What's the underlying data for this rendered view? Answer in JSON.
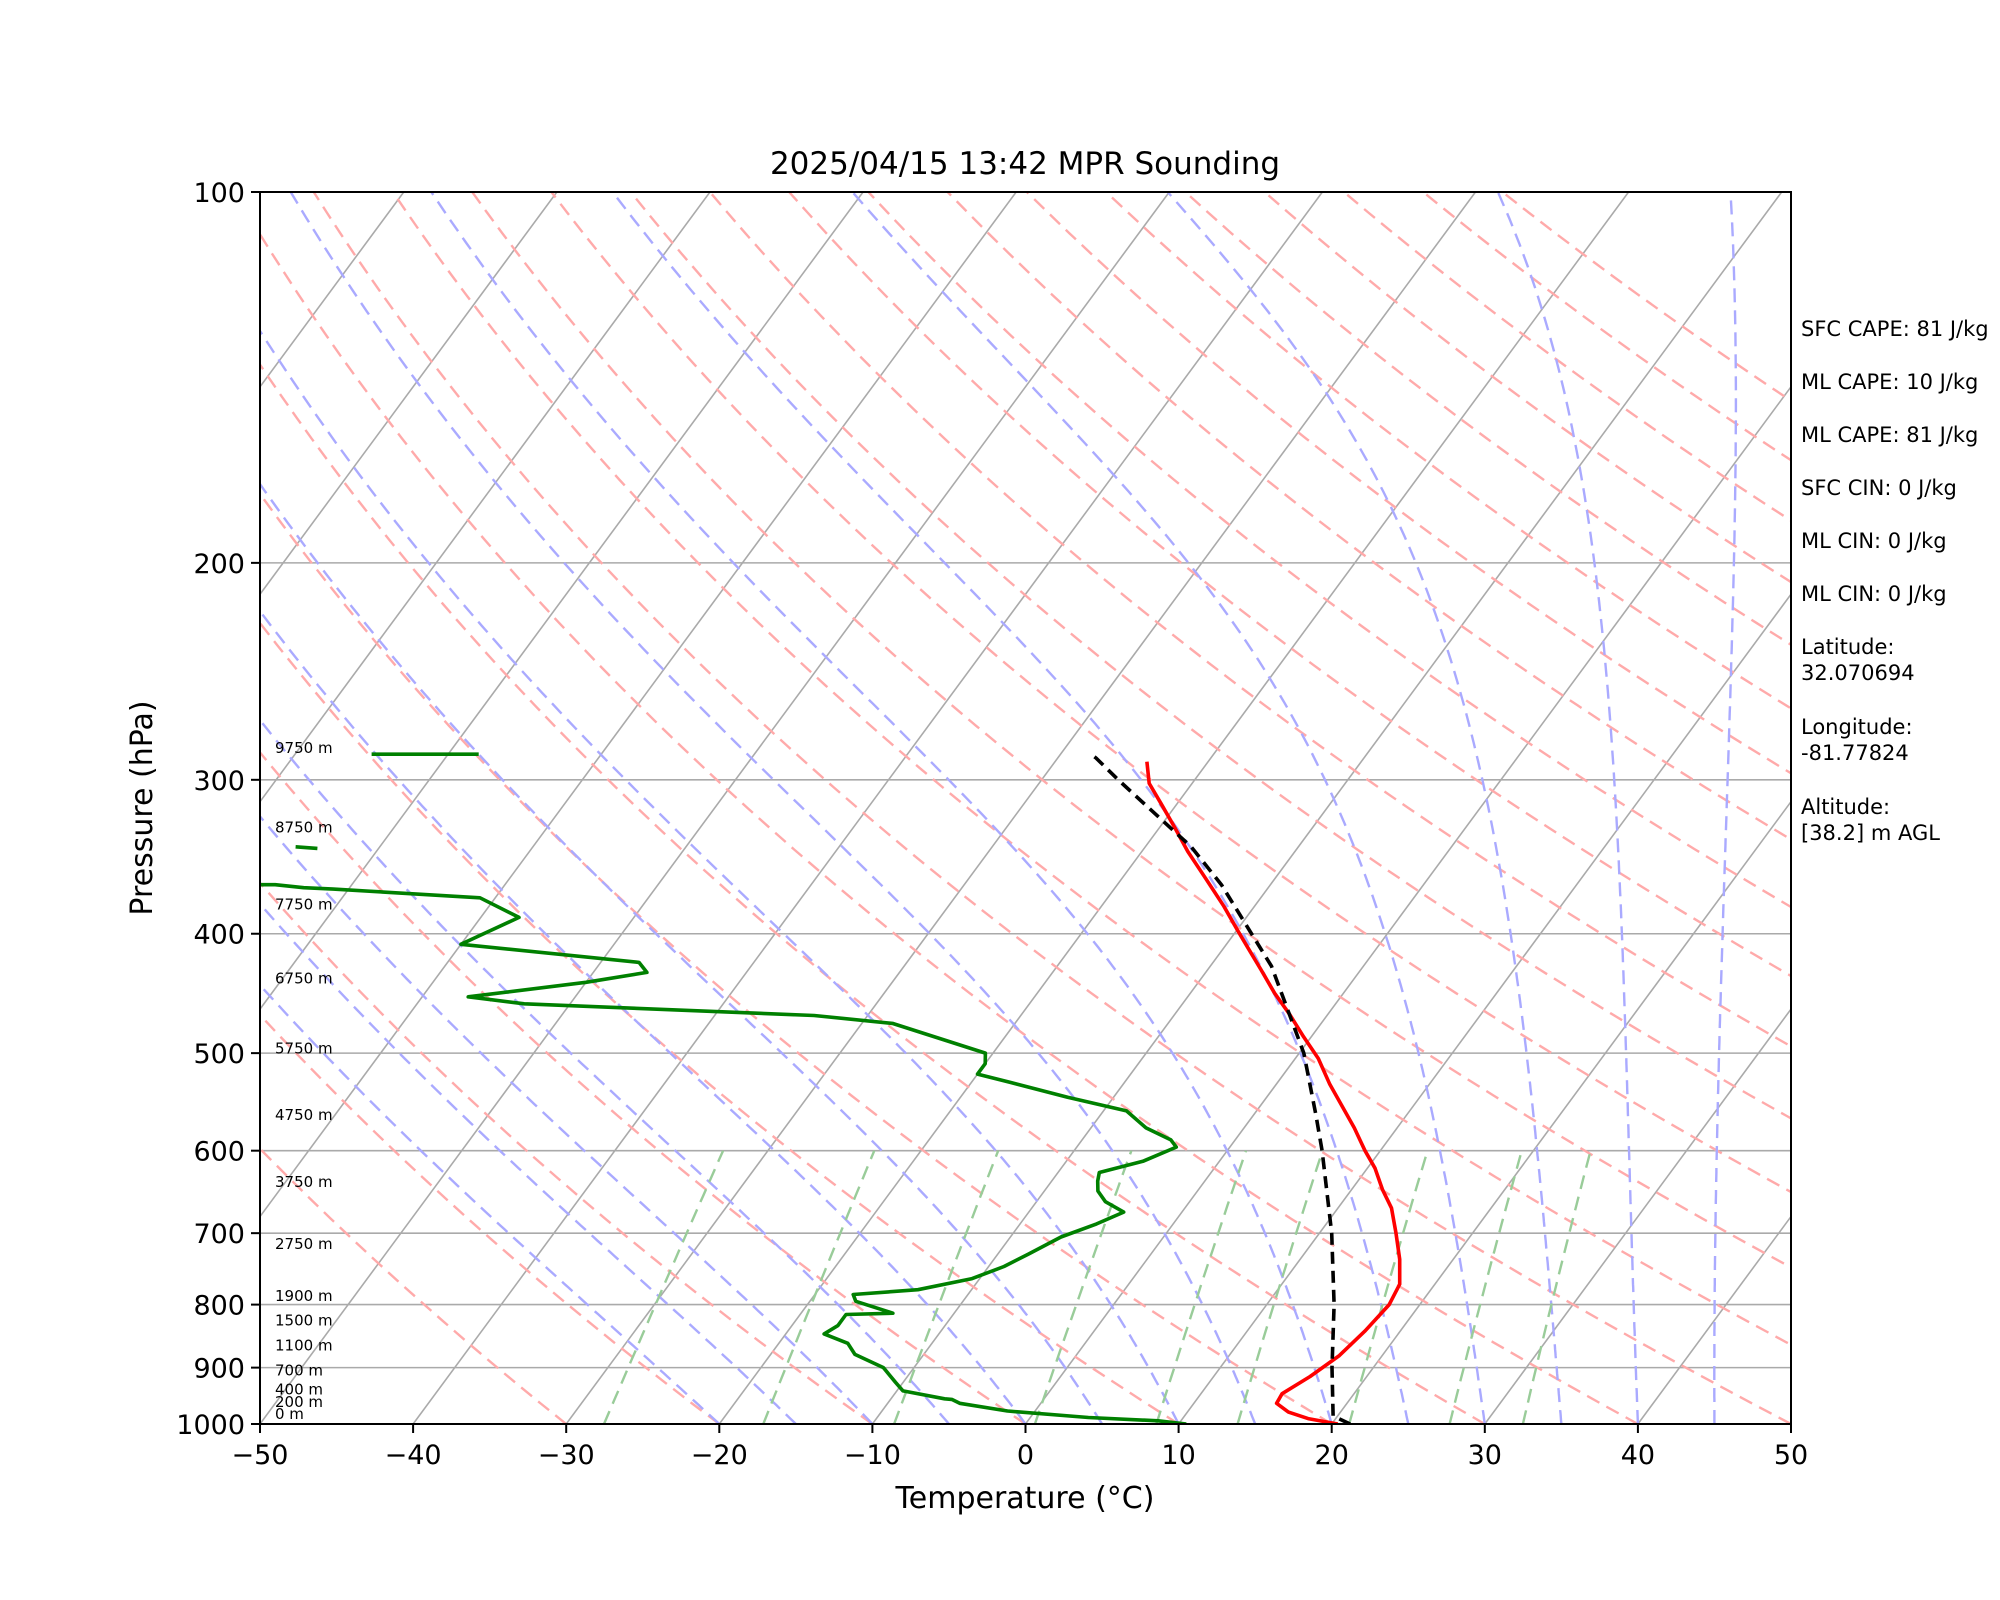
{
  "chart_data": {
    "type": "line",
    "title": "2025/04/15 13:42 MPR Sounding",
    "xlabel": "Temperature (°C)",
    "ylabel": "Pressure (hPa)",
    "xlim": [
      -50,
      50
    ],
    "ylim": [
      1000,
      100
    ],
    "y_scale": "log",
    "skew": "skew-T",
    "xticks": [
      -50,
      -40,
      -30,
      -20,
      -10,
      0,
      10,
      20,
      30,
      40,
      50
    ],
    "xtick_labels": [
      "−50",
      "−40",
      "−30",
      "−20",
      "−10",
      "0",
      "10",
      "20",
      "30",
      "40",
      "50"
    ],
    "yticks": [
      1000,
      900,
      800,
      700,
      600,
      500,
      400,
      300,
      200,
      100
    ],
    "ytick_labels": [
      "1000",
      "900",
      "800",
      "700",
      "600",
      "500",
      "400",
      "300",
      "200",
      "100"
    ],
    "grid": true,
    "height_labels": [
      {
        "label": "0 m",
        "p": 1000
      },
      {
        "label": "200 m",
        "p": 978
      },
      {
        "label": "400 m",
        "p": 955
      },
      {
        "label": "700 m",
        "p": 922
      },
      {
        "label": "1100 m",
        "p": 880
      },
      {
        "label": "1500 m",
        "p": 840
      },
      {
        "label": "1900 m",
        "p": 802
      },
      {
        "label": "2750 m",
        "p": 728
      },
      {
        "label": "3750 m",
        "p": 648
      },
      {
        "label": "4750 m",
        "p": 572
      },
      {
        "label": "5750 m",
        "p": 505
      },
      {
        "label": "6750 m",
        "p": 443
      },
      {
        "label": "7750 m",
        "p": 386
      },
      {
        "label": "8750 m",
        "p": 334
      },
      {
        "label": "9750 m",
        "p": 288
      }
    ],
    "series": [
      {
        "color": "#ff0000",
        "points": [
          [
            20.4,
            1000
          ],
          [
            18.2,
            990
          ],
          [
            16.6,
            978
          ],
          [
            15.4,
            962
          ],
          [
            15.3,
            945
          ],
          [
            16.3,
            915
          ],
          [
            17.2,
            880
          ],
          [
            17.7,
            840
          ],
          [
            18.0,
            800
          ],
          [
            17.7,
            770
          ],
          [
            16.5,
            735
          ],
          [
            15.0,
            700
          ],
          [
            13.5,
            668
          ],
          [
            12.0,
            645
          ],
          [
            10.5,
            620
          ],
          [
            9.0,
            600
          ],
          [
            7.2,
            575
          ],
          [
            5.6,
            555
          ],
          [
            3.5,
            530
          ],
          [
            1.5,
            505
          ],
          [
            -0.5,
            485
          ],
          [
            -2.5,
            465
          ],
          [
            -4.5,
            447
          ],
          [
            -6.5,
            428
          ],
          [
            -8.5,
            410
          ],
          [
            -10.0,
            397
          ],
          [
            -12.0,
            380
          ],
          [
            -14.5,
            361
          ],
          [
            -17.0,
            343
          ],
          [
            -19.0,
            328
          ],
          [
            -21.0,
            314
          ],
          [
            -22.8,
            302
          ],
          [
            -24.0,
            290
          ]
        ]
      },
      {
        "color": "#008000",
        "points": [
          [
            10.5,
            1000
          ],
          [
            8.5,
            994
          ],
          [
            3.8,
            988
          ],
          [
            -1.8,
            976
          ],
          [
            -5.3,
            962
          ],
          [
            -6.0,
            955
          ],
          [
            -6.5,
            954
          ],
          [
            -9.6,
            940
          ],
          [
            -10.5,
            925
          ],
          [
            -12.0,
            900
          ],
          [
            -14.5,
            878
          ],
          [
            -15.5,
            860
          ],
          [
            -17.5,
            845
          ],
          [
            -17.0,
            832
          ],
          [
            -17.0,
            815
          ],
          [
            -14.0,
            813
          ],
          [
            -17.0,
            795
          ],
          [
            -17.5,
            785
          ],
          [
            -13.5,
            778
          ],
          [
            -10.5,
            762
          ],
          [
            -9.0,
            745
          ],
          [
            -8.0,
            728
          ],
          [
            -6.7,
            705
          ],
          [
            -5.0,
            688
          ],
          [
            -3.8,
            673
          ],
          [
            -5.5,
            660
          ],
          [
            -6.5,
            647
          ],
          [
            -7.0,
            635
          ],
          [
            -7.3,
            625
          ],
          [
            -5.0,
            612
          ],
          [
            -3.5,
            596
          ],
          [
            -4.2,
            588
          ],
          [
            -6.4,
            575
          ],
          [
            -8.5,
            557
          ],
          [
            -13.0,
            543
          ],
          [
            -17.5,
            528
          ],
          [
            -20.0,
            520
          ],
          [
            -20.0,
            510
          ],
          [
            -20.5,
            500
          ],
          [
            -28.0,
            473
          ],
          [
            -33.5,
            466
          ],
          [
            -53.0,
            456
          ],
          [
            -57.0,
            450
          ],
          [
            -50.0,
            438
          ],
          [
            -46.5,
            430
          ],
          [
            -47.5,
            422
          ],
          [
            -60.0,
            408
          ],
          [
            -57.5,
            388
          ],
          [
            -61.0,
            374
          ],
          [
            -71.0,
            368
          ],
          [
            -73.0,
            367
          ],
          [
            -75.0,
            365
          ],
          [
            -82.0,
            365
          ]
        ]
      },
      {
        "color": "#008000",
        "points": [
          [
            -74.0,
            341
          ],
          [
            -75.5,
            340
          ]
        ]
      },
      {
        "color": "#008000",
        "points": [
          [
            -68.0,
            286
          ],
          [
            -75.0,
            286
          ]
        ]
      },
      {
        "color": "#000000",
        "dash": "dashed",
        "points": [
          [
            21.2,
            1000
          ],
          [
            19.7,
            985
          ],
          [
            17.3,
            900
          ],
          [
            14.4,
            800
          ],
          [
            10.8,
            700
          ],
          [
            6.2,
            600
          ],
          [
            4.0,
            560
          ],
          [
            0.3,
            500
          ],
          [
            -6.0,
            425
          ],
          [
            -13.2,
            365
          ],
          [
            -17.0,
            340
          ],
          [
            -19.9,
            325
          ],
          [
            -25.0,
            300
          ],
          [
            -27.5,
            288
          ],
          [
            -28.0,
            286
          ]
        ]
      }
    ],
    "reference_lines": {
      "isotherms": {
        "color": "#aaaaaa",
        "style": "solid"
      },
      "dry_adiabats": {
        "color": "#ffaaaa",
        "style": "dashed"
      },
      "moist_adiabats": {
        "color": "#aaaaff",
        "style": "dashed"
      },
      "mixing_ratio_lines": {
        "color": "#99cc99",
        "style": "dashed"
      }
    }
  },
  "side_panel": {
    "stats": [
      "SFC CAPE: 81 J/kg",
      "ML CAPE: 10 J/kg",
      "ML CAPE: 81 J/kg",
      "SFC CIN: 0 J/kg",
      "ML CIN: 0 J/kg",
      "ML CIN: 0 J/kg"
    ],
    "location": [
      {
        "label": "Latitude:",
        "value": "32.070694"
      },
      {
        "label": "Longitude:",
        "value": "-81.77824"
      },
      {
        "label": "Altitude:",
        "value": "[38.2] m AGL"
      }
    ]
  }
}
